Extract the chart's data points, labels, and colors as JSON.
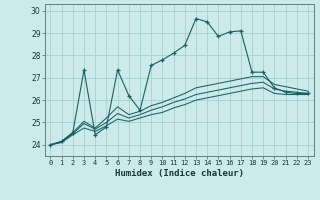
{
  "xlabel": "Humidex (Indice chaleur)",
  "background_color": "#cceaea",
  "grid_color": "#a8d0d0",
  "line_color": "#1a6060",
  "xlim": [
    -0.5,
    23.5
  ],
  "ylim": [
    23.5,
    30.3
  ],
  "yticks": [
    24,
    25,
    26,
    27,
    28,
    29,
    30
  ],
  "xticks": [
    0,
    1,
    2,
    3,
    4,
    5,
    6,
    7,
    8,
    9,
    10,
    11,
    12,
    13,
    14,
    15,
    16,
    17,
    18,
    19,
    20,
    21,
    22,
    23
  ],
  "series": [
    [
      24.0,
      24.15,
      24.55,
      27.35,
      24.45,
      24.8,
      27.35,
      26.2,
      25.55,
      27.55,
      27.8,
      28.1,
      28.45,
      29.65,
      29.5,
      28.85,
      29.05,
      29.1,
      27.25,
      27.25,
      26.55,
      26.35,
      26.3,
      26.3
    ],
    [
      24.0,
      24.15,
      24.55,
      25.05,
      24.75,
      25.2,
      25.7,
      25.35,
      25.5,
      25.75,
      25.9,
      26.1,
      26.3,
      26.55,
      26.65,
      26.75,
      26.85,
      26.95,
      27.05,
      27.05,
      26.7,
      26.6,
      26.5,
      26.4
    ],
    [
      24.0,
      24.15,
      24.5,
      24.95,
      24.7,
      25.0,
      25.4,
      25.2,
      25.35,
      25.55,
      25.7,
      25.9,
      26.05,
      26.25,
      26.35,
      26.45,
      26.55,
      26.65,
      26.75,
      26.8,
      26.5,
      26.4,
      26.35,
      26.3
    ],
    [
      24.0,
      24.1,
      24.45,
      24.75,
      24.6,
      24.85,
      25.15,
      25.05,
      25.2,
      25.35,
      25.45,
      25.65,
      25.8,
      26.0,
      26.1,
      26.2,
      26.3,
      26.4,
      26.5,
      26.55,
      26.3,
      26.25,
      26.25,
      26.25
    ]
  ]
}
